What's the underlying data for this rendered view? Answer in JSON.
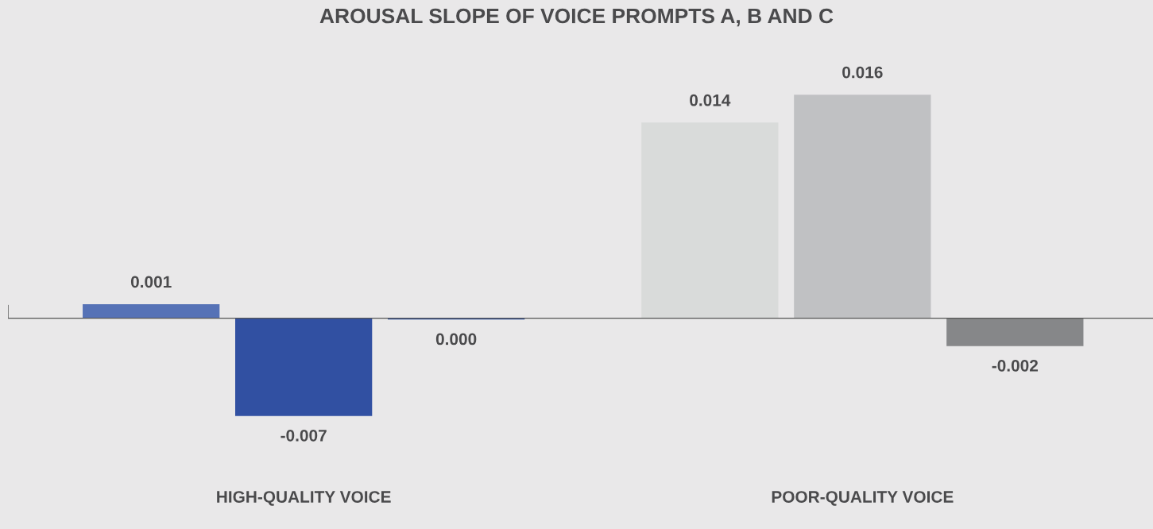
{
  "chart_data": {
    "type": "bar",
    "title": "AROUSAL SLOPE OF VOICE PROMPTS A, B AND C",
    "categories": [
      "HIGH-QUALITY VOICE",
      "POOR-QUALITY VOICE"
    ],
    "series": [
      {
        "colors": [
          "#5672b6",
          "#d9dbda"
        ],
        "values": [
          0.001,
          0.014
        ],
        "value_labels": [
          "0.001",
          "0.014"
        ]
      },
      {
        "colors": [
          "#3150a2",
          "#c0c1c3"
        ],
        "values": [
          -0.007,
          0.016
        ],
        "value_labels": [
          "-0.007",
          "0.016"
        ]
      },
      {
        "colors": [
          "#2f4fa0",
          "#868789"
        ],
        "values": [
          -0.0001,
          -0.002
        ],
        "value_labels": [
          "0.000",
          "-0.002"
        ]
      }
    ],
    "grid": false
  }
}
